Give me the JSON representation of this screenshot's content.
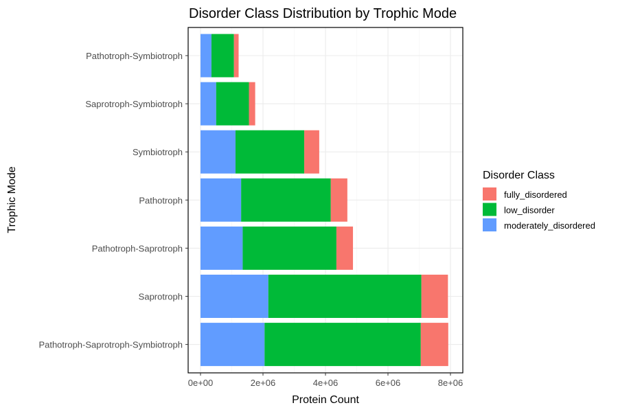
{
  "chart_data": {
    "type": "bar",
    "orientation": "horizontal",
    "stacked": true,
    "title": "Disorder Class Distribution by Trophic Mode",
    "xlabel": "Protein Count",
    "ylabel": "Trophic Mode",
    "xlim": [
      0,
      8000000
    ],
    "x_ticks": [
      {
        "value": 0,
        "label": "0e+00"
      },
      {
        "value": 2000000,
        "label": "2e+06"
      },
      {
        "value": 4000000,
        "label": "4e+06"
      },
      {
        "value": 6000000,
        "label": "6e+06"
      },
      {
        "value": 8000000,
        "label": "8e+06"
      }
    ],
    "grid": true,
    "legend_position": "right",
    "legend_title": "Disorder Class",
    "categories": [
      "Pathotroph-Symbiotroph",
      "Saprotroph-Symbiotroph",
      "Symbiotroph",
      "Pathotroph",
      "Pathotroph-Saprotroph",
      "Saprotroph",
      "Pathotroph-Saprotroph-Symbiotroph"
    ],
    "series": [
      {
        "name": "moderately_disordered",
        "color": "#619CFF",
        "values": [
          350000,
          500000,
          1120000,
          1300000,
          1350000,
          2170000,
          2050000
        ]
      },
      {
        "name": "low_disorder",
        "color": "#00BA38",
        "values": [
          720000,
          1050000,
          2200000,
          2870000,
          3000000,
          4900000,
          5000000
        ]
      },
      {
        "name": "fully_disordered",
        "color": "#F8766D",
        "values": [
          150000,
          200000,
          480000,
          530000,
          530000,
          850000,
          880000
        ]
      }
    ],
    "legend_order": [
      "fully_disordered",
      "low_disorder",
      "moderately_disordered"
    ]
  }
}
